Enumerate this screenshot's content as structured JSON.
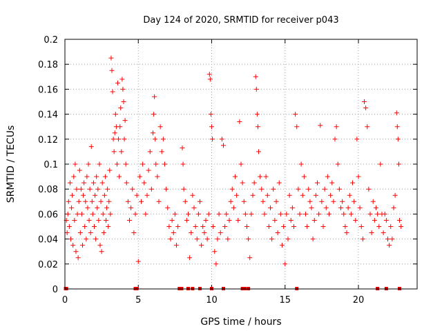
{
  "chart_data": {
    "type": "scatter",
    "title": "Day 124 of 2020, SRMTID for receiver p043",
    "xlabel": "GPS time / hours",
    "ylabel": "SRMTID / TECUs",
    "xlim": [
      0,
      24
    ],
    "ylim": [
      0,
      0.2
    ],
    "xticks": [
      0,
      5,
      10,
      15,
      20
    ],
    "yticks": [
      0,
      0.02,
      0.04,
      0.06,
      0.08,
      0.1,
      0.12,
      0.14,
      0.16,
      0.18,
      0.2
    ],
    "ytick_labels": [
      "0",
      "0.02",
      "0.04",
      "0.06",
      "0.08",
      "0.1",
      "0.12",
      "0.14",
      "0.16",
      "0.18",
      "0.2"
    ],
    "grid": true,
    "marker": "plus",
    "color": "#ff0000",
    "zero_points_x": [
      0.05,
      0.1,
      4.8,
      4.9,
      7.8,
      7.95,
      8.4,
      8.7,
      9.2,
      10.0,
      10.8,
      12.1,
      12.25,
      12.5,
      15.8,
      21.3,
      21.9,
      22.8
    ],
    "points": [
      [
        0.1,
        0.055
      ],
      [
        0.15,
        0.045
      ],
      [
        0.2,
        0.06
      ],
      [
        0.25,
        0.07
      ],
      [
        0.3,
        0.05
      ],
      [
        0.35,
        0.085
      ],
      [
        0.4,
        0.04
      ],
      [
        0.45,
        0.065
      ],
      [
        0.5,
        0.075
      ],
      [
        0.55,
        0.035
      ],
      [
        0.6,
        0.09
      ],
      [
        0.65,
        0.055
      ],
      [
        0.7,
        0.1
      ],
      [
        0.75,
        0.03
      ],
      [
        0.8,
        0.08
      ],
      [
        0.85,
        0.06
      ],
      [
        0.9,
        0.025
      ],
      [
        0.95,
        0.07
      ],
      [
        1.0,
        0.095
      ],
      [
        1.05,
        0.045
      ],
      [
        1.1,
        0.08
      ],
      [
        1.15,
        0.06
      ],
      [
        1.2,
        0.035
      ],
      [
        1.25,
        0.075
      ],
      [
        1.3,
        0.085
      ],
      [
        1.35,
        0.05
      ],
      [
        1.4,
        0.07
      ],
      [
        1.45,
        0.04
      ],
      [
        1.5,
        0.09
      ],
      [
        1.55,
        0.065
      ],
      [
        1.6,
        0.1
      ],
      [
        1.65,
        0.055
      ],
      [
        1.7,
        0.08
      ],
      [
        1.75,
        0.045
      ],
      [
        1.8,
        0.114
      ],
      [
        1.85,
        0.07
      ],
      [
        1.9,
        0.06
      ],
      [
        1.95,
        0.085
      ],
      [
        2.0,
        0.05
      ],
      [
        2.05,
        0.075
      ],
      [
        2.1,
        0.04
      ],
      [
        2.15,
        0.09
      ],
      [
        2.2,
        0.065
      ],
      [
        2.25,
        0.08
      ],
      [
        2.3,
        0.055
      ],
      [
        2.35,
        0.1
      ],
      [
        2.4,
        0.035
      ],
      [
        2.45,
        0.07
      ],
      [
        2.5,
        0.03
      ],
      [
        2.55,
        0.085
      ],
      [
        2.6,
        0.06
      ],
      [
        2.65,
        0.045
      ],
      [
        2.7,
        0.075
      ],
      [
        2.75,
        0.09
      ],
      [
        2.8,
        0.055
      ],
      [
        2.85,
        0.065
      ],
      [
        2.9,
        0.08
      ],
      [
        2.95,
        0.05
      ],
      [
        3.0,
        0.07
      ],
      [
        3.05,
        0.095
      ],
      [
        3.1,
        0.06
      ],
      [
        3.15,
        0.185
      ],
      [
        3.2,
        0.175
      ],
      [
        3.25,
        0.158
      ],
      [
        3.3,
        0.12
      ],
      [
        3.35,
        0.11
      ],
      [
        3.4,
        0.125
      ],
      [
        3.45,
        0.14
      ],
      [
        3.5,
        0.13
      ],
      [
        3.55,
        0.1
      ],
      [
        3.6,
        0.165
      ],
      [
        3.65,
        0.12
      ],
      [
        3.7,
        0.09
      ],
      [
        3.75,
        0.13
      ],
      [
        3.8,
        0.145
      ],
      [
        3.85,
        0.11
      ],
      [
        3.9,
        0.168
      ],
      [
        3.95,
        0.16
      ],
      [
        4.0,
        0.15
      ],
      [
        4.05,
        0.12
      ],
      [
        4.1,
        0.135
      ],
      [
        4.15,
        0.1
      ],
      [
        4.2,
        0.085
      ],
      [
        4.3,
        0.07
      ],
      [
        4.4,
        0.055
      ],
      [
        4.5,
        0.065
      ],
      [
        4.6,
        0.08
      ],
      [
        4.7,
        0.045
      ],
      [
        4.8,
        0.06
      ],
      [
        4.9,
        0.075
      ],
      [
        5.0,
        0.022
      ],
      [
        5.1,
        0.09
      ],
      [
        5.2,
        0.07
      ],
      [
        5.3,
        0.1
      ],
      [
        5.4,
        0.085
      ],
      [
        5.5,
        0.06
      ],
      [
        5.6,
        0.075
      ],
      [
        5.7,
        0.095
      ],
      [
        5.8,
        0.11
      ],
      [
        5.9,
        0.08
      ],
      [
        6.0,
        0.125
      ],
      [
        6.05,
        0.14
      ],
      [
        6.1,
        0.154
      ],
      [
        6.15,
        0.12
      ],
      [
        6.2,
        0.1
      ],
      [
        6.3,
        0.09
      ],
      [
        6.4,
        0.07
      ],
      [
        6.5,
        0.13
      ],
      [
        6.6,
        0.11
      ],
      [
        6.7,
        0.12
      ],
      [
        6.8,
        0.1
      ],
      [
        6.9,
        0.08
      ],
      [
        7.0,
        0.065
      ],
      [
        7.1,
        0.05
      ],
      [
        7.2,
        0.04
      ],
      [
        7.3,
        0.055
      ],
      [
        7.4,
        0.045
      ],
      [
        7.5,
        0.06
      ],
      [
        7.6,
        0.035
      ],
      [
        7.7,
        0.05
      ],
      [
        8.0,
        0.113
      ],
      [
        8.05,
        0.1
      ],
      [
        8.1,
        0.08
      ],
      [
        8.2,
        0.07
      ],
      [
        8.3,
        0.055
      ],
      [
        8.4,
        0.06
      ],
      [
        8.5,
        0.025
      ],
      [
        8.6,
        0.045
      ],
      [
        8.7,
        0.075
      ],
      [
        8.8,
        0.065
      ],
      [
        8.9,
        0.05
      ],
      [
        9.0,
        0.04
      ],
      [
        9.1,
        0.06
      ],
      [
        9.2,
        0.07
      ],
      [
        9.3,
        0.035
      ],
      [
        9.4,
        0.05
      ],
      [
        9.5,
        0.045
      ],
      [
        9.6,
        0.055
      ],
      [
        9.7,
        0.04
      ],
      [
        9.8,
        0.06
      ],
      [
        9.85,
        0.172
      ],
      [
        9.9,
        0.168
      ],
      [
        9.95,
        0.14
      ],
      [
        10.0,
        0.13
      ],
      [
        10.05,
        0.12
      ],
      [
        10.1,
        0.05
      ],
      [
        10.2,
        0.03
      ],
      [
        10.3,
        0.02
      ],
      [
        10.4,
        0.04
      ],
      [
        10.5,
        0.06
      ],
      [
        10.6,
        0.045
      ],
      [
        10.7,
        0.12
      ],
      [
        10.8,
        0.115
      ],
      [
        10.9,
        0.05
      ],
      [
        11.0,
        0.06
      ],
      [
        11.1,
        0.04
      ],
      [
        11.2,
        0.055
      ],
      [
        11.3,
        0.07
      ],
      [
        11.4,
        0.08
      ],
      [
        11.5,
        0.065
      ],
      [
        11.6,
        0.09
      ],
      [
        11.7,
        0.075
      ],
      [
        11.8,
        0.055
      ],
      [
        11.9,
        0.134
      ],
      [
        12.0,
        0.1
      ],
      [
        12.1,
        0.085
      ],
      [
        12.2,
        0.07
      ],
      [
        12.3,
        0.06
      ],
      [
        12.4,
        0.05
      ],
      [
        12.5,
        0.04
      ],
      [
        12.6,
        0.025
      ],
      [
        12.7,
        0.06
      ],
      [
        12.8,
        0.075
      ],
      [
        12.9,
        0.085
      ],
      [
        13.0,
        0.17
      ],
      [
        13.05,
        0.16
      ],
      [
        13.1,
        0.14
      ],
      [
        13.15,
        0.13
      ],
      [
        13.2,
        0.11
      ],
      [
        13.3,
        0.09
      ],
      [
        13.4,
        0.08
      ],
      [
        13.5,
        0.07
      ],
      [
        13.6,
        0.06
      ],
      [
        13.7,
        0.09
      ],
      [
        13.8,
        0.075
      ],
      [
        13.9,
        0.05
      ],
      [
        14.0,
        0.065
      ],
      [
        14.1,
        0.04
      ],
      [
        14.2,
        0.08
      ],
      [
        14.3,
        0.055
      ],
      [
        14.4,
        0.07
      ],
      [
        14.5,
        0.045
      ],
      [
        14.6,
        0.085
      ],
      [
        14.7,
        0.06
      ],
      [
        14.8,
        0.035
      ],
      [
        14.9,
        0.05
      ],
      [
        15.0,
        0.02
      ],
      [
        15.1,
        0.06
      ],
      [
        15.2,
        0.04
      ],
      [
        15.3,
        0.075
      ],
      [
        15.4,
        0.055
      ],
      [
        15.5,
        0.065
      ],
      [
        15.6,
        0.05
      ],
      [
        15.7,
        0.14
      ],
      [
        15.8,
        0.13
      ],
      [
        15.9,
        0.08
      ],
      [
        16.0,
        0.06
      ],
      [
        16.1,
        0.1
      ],
      [
        16.2,
        0.075
      ],
      [
        16.3,
        0.09
      ],
      [
        16.4,
        0.06
      ],
      [
        16.5,
        0.05
      ],
      [
        16.6,
        0.08
      ],
      [
        16.7,
        0.07
      ],
      [
        16.8,
        0.065
      ],
      [
        16.9,
        0.04
      ],
      [
        17.0,
        0.055
      ],
      [
        17.1,
        0.075
      ],
      [
        17.2,
        0.085
      ],
      [
        17.3,
        0.06
      ],
      [
        17.4,
        0.131
      ],
      [
        17.5,
        0.07
      ],
      [
        17.6,
        0.05
      ],
      [
        17.7,
        0.08
      ],
      [
        17.8,
        0.065
      ],
      [
        17.9,
        0.09
      ],
      [
        18.0,
        0.06
      ],
      [
        18.1,
        0.075
      ],
      [
        18.2,
        0.085
      ],
      [
        18.3,
        0.07
      ],
      [
        18.4,
        0.12
      ],
      [
        18.5,
        0.13
      ],
      [
        18.6,
        0.1
      ],
      [
        18.7,
        0.08
      ],
      [
        18.8,
        0.065
      ],
      [
        18.9,
        0.07
      ],
      [
        19.0,
        0.06
      ],
      [
        19.1,
        0.05
      ],
      [
        19.2,
        0.045
      ],
      [
        19.3,
        0.065
      ],
      [
        19.4,
        0.075
      ],
      [
        19.5,
        0.06
      ],
      [
        19.6,
        0.085
      ],
      [
        19.7,
        0.07
      ],
      [
        19.8,
        0.055
      ],
      [
        19.9,
        0.12
      ],
      [
        20.0,
        0.09
      ],
      [
        20.1,
        0.065
      ],
      [
        20.2,
        0.05
      ],
      [
        20.3,
        0.04
      ],
      [
        20.4,
        0.15
      ],
      [
        20.5,
        0.145
      ],
      [
        20.6,
        0.13
      ],
      [
        20.7,
        0.08
      ],
      [
        20.8,
        0.06
      ],
      [
        20.9,
        0.045
      ],
      [
        21.0,
        0.07
      ],
      [
        21.1,
        0.055
      ],
      [
        21.2,
        0.065
      ],
      [
        21.3,
        0.06
      ],
      [
        21.4,
        0.05
      ],
      [
        21.5,
        0.1
      ],
      [
        21.6,
        0.06
      ],
      [
        21.7,
        0.045
      ],
      [
        21.8,
        0.06
      ],
      [
        21.9,
        0.055
      ],
      [
        22.0,
        0.04
      ],
      [
        22.1,
        0.035
      ],
      [
        22.2,
        0.05
      ],
      [
        22.3,
        0.04
      ],
      [
        22.4,
        0.065
      ],
      [
        22.5,
        0.075
      ],
      [
        22.6,
        0.141
      ],
      [
        22.65,
        0.13
      ],
      [
        22.7,
        0.12
      ],
      [
        22.75,
        0.1
      ],
      [
        22.8,
        0.055
      ],
      [
        22.9,
        0.05
      ]
    ]
  }
}
